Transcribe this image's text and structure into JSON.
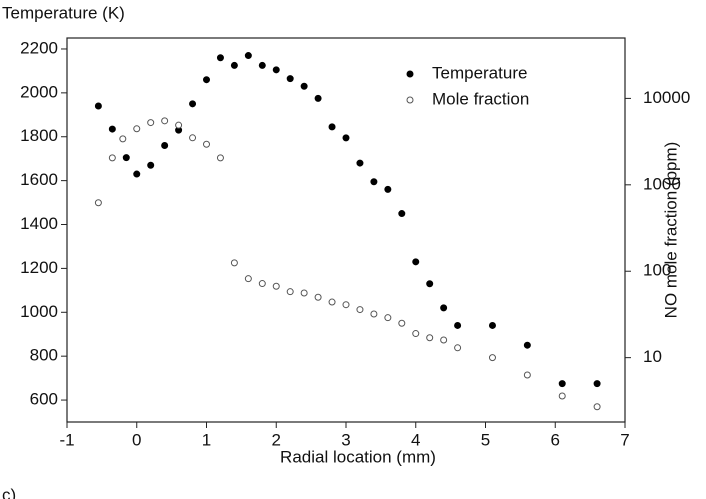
{
  "chart_data": {
    "type": "scatter",
    "label": "c)",
    "y_label": "Temperature (K)",
    "y2_label": "NO mole fraction (ppm)",
    "x_label": "Radial location (mm)",
    "xlim": [
      -1,
      7
    ],
    "xticks": [
      -1,
      0,
      1,
      2,
      3,
      4,
      5,
      6,
      7
    ],
    "ylim": [
      500,
      2250
    ],
    "yticks": [
      600,
      800,
      1000,
      1200,
      1400,
      1600,
      1800,
      2000,
      2200
    ],
    "y2lim": [
      1.8,
      50000
    ],
    "y2ticks": [
      10,
      100,
      1000,
      10000
    ],
    "y2log": true,
    "legend": "top-right",
    "series": [
      {
        "name": "Temperature",
        "color": "#000000",
        "filled": true,
        "x": [
          -0.55,
          -0.35,
          -0.15,
          0.0,
          0.2,
          0.4,
          0.6,
          0.8,
          1.0,
          1.2,
          1.4,
          1.6,
          1.8,
          2.0,
          2.2,
          2.4,
          2.6,
          2.8,
          3.0,
          3.2,
          3.4,
          3.6,
          3.8,
          4.0,
          4.2,
          4.4,
          4.6,
          5.1,
          5.6,
          6.1,
          6.6
        ],
        "values": [
          1940,
          1835,
          1705,
          1630,
          1670,
          1760,
          1830,
          1950,
          2060,
          2160,
          2125,
          2170,
          2125,
          2105,
          2065,
          2030,
          1975,
          1845,
          1795,
          1680,
          1595,
          1560,
          1450,
          1230,
          1130,
          1020,
          940,
          940,
          850,
          675,
          675
        ]
      },
      {
        "name": "Mole fraction",
        "color": "#555555",
        "filled": false,
        "axis": "y2",
        "x": [
          -0.55,
          -0.35,
          -0.2,
          0.0,
          0.2,
          0.4,
          0.6,
          0.8,
          1.0,
          1.2,
          1.4,
          1.6,
          1.8,
          2.0,
          2.2,
          2.4,
          2.6,
          2.8,
          3.0,
          3.2,
          3.4,
          3.6,
          3.8,
          4.0,
          4.2,
          4.4,
          4.6,
          5.1,
          5.6,
          6.1,
          6.6
        ],
        "values": [
          620,
          2050,
          3400,
          4450,
          5250,
          5500,
          4900,
          3500,
          2950,
          2050,
          125,
          82,
          72,
          67,
          58,
          56,
          50,
          44,
          41,
          36,
          32,
          29,
          25,
          19,
          17,
          16,
          13,
          10,
          6.3,
          3.6,
          2.7
        ]
      }
    ]
  }
}
